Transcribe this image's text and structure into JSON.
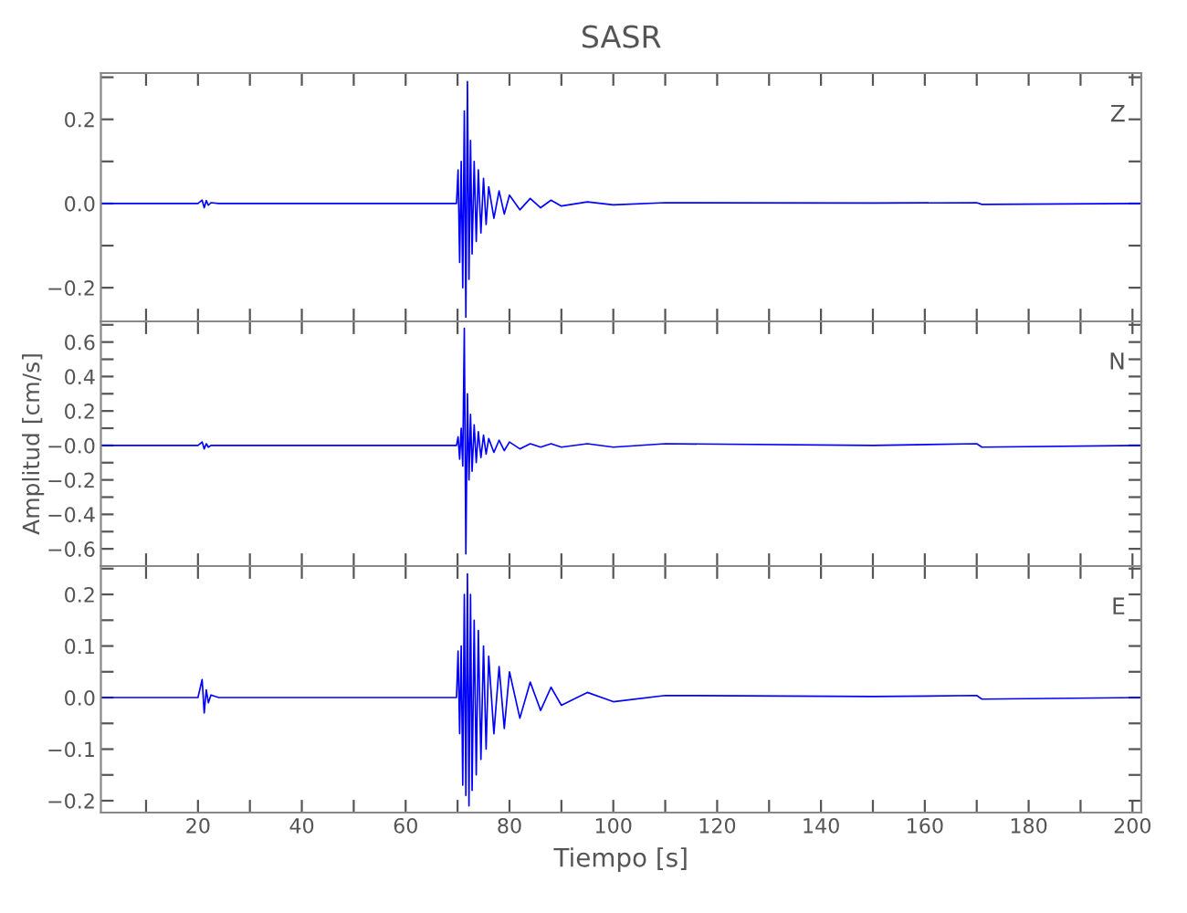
{
  "chart_data": [
    {
      "type": "line",
      "title": "SASR",
      "annotations": [
        "Z"
      ],
      "tick_labels": "y",
      "grid": false,
      "legend": false,
      "x": [
        1.3,
        20,
        20.8,
        21.2,
        21.6,
        22,
        22.5,
        24,
        40,
        60,
        69.8,
        70.1,
        70.4,
        70.7,
        71.0,
        71.3,
        71.6,
        71.9,
        72.2,
        72.5,
        72.8,
        73.2,
        73.6,
        74,
        74.5,
        75,
        75.5,
        76,
        77,
        78,
        79,
        80,
        82,
        84,
        86,
        88,
        90,
        95,
        100,
        110,
        150,
        170,
        171,
        201.7
      ],
      "series": [
        {
          "color": "#0000ff",
          "values": [
            0,
            0,
            0.008,
            -0.01,
            0.007,
            -0.004,
            0.002,
            0,
            0,
            0,
            0,
            0.08,
            -0.14,
            0.1,
            -0.2,
            0.22,
            -0.27,
            0.29,
            -0.18,
            0.15,
            -0.12,
            0.1,
            -0.09,
            0.08,
            -0.07,
            0.06,
            -0.05,
            0.04,
            -0.035,
            0.03,
            -0.025,
            0.02,
            -0.015,
            0.012,
            -0.01,
            0.008,
            -0.006,
            0.004,
            -0.003,
            0.002,
            0.001,
            0.002,
            -0.002,
            0
          ]
        }
      ],
      "xlim": [
        1.3,
        201.7
      ],
      "ylim": [
        -0.28,
        0.31
      ],
      "xticks": [
        {
          "value": 10,
          "label": null
        },
        20,
        {
          "value": 30,
          "label": null
        },
        40,
        {
          "value": 50,
          "label": null
        },
        60,
        {
          "value": 70,
          "label": null
        },
        80,
        {
          "value": 90,
          "label": null
        },
        100,
        {
          "value": 110,
          "label": null
        },
        120,
        {
          "value": 130,
          "label": null
        },
        140,
        {
          "value": 150,
          "label": null
        },
        160,
        {
          "value": 170,
          "label": null
        },
        180,
        {
          "value": 190,
          "label": null
        },
        200
      ],
      "yticks": [
        {
          "value": -0.2,
          "label": "−0.2"
        },
        {
          "value": -0.1,
          "label": null
        },
        {
          "value": 0,
          "label": "0.0"
        },
        {
          "value": 0.1,
          "label": null
        },
        0.2,
        {
          "value": 0.3,
          "label": null
        }
      ]
    },
    {
      "type": "line",
      "ylabel": "Amplitud [cm/s]",
      "annotations": [
        "N"
      ],
      "tick_labels": "y",
      "grid": false,
      "legend": false,
      "x": [
        1.3,
        20,
        20.8,
        21.2,
        21.6,
        22,
        22.5,
        24,
        40,
        60,
        69.8,
        70.1,
        70.4,
        70.7,
        71.0,
        71.3,
        71.6,
        71.9,
        72.2,
        72.5,
        72.8,
        73.2,
        73.6,
        74,
        74.5,
        75,
        75.5,
        76,
        77,
        78,
        79,
        80,
        82,
        84,
        86,
        88,
        90,
        95,
        100,
        110,
        150,
        170,
        171,
        201.7
      ],
      "series": [
        {
          "color": "#0000ff",
          "values": [
            0,
            0,
            0.02,
            -0.02,
            0.01,
            -0.01,
            0,
            0,
            0,
            0,
            0,
            0.05,
            -0.08,
            0.1,
            -0.12,
            0.68,
            -0.63,
            0.3,
            -0.2,
            0.18,
            -0.15,
            0.12,
            -0.1,
            0.08,
            -0.07,
            0.06,
            -0.05,
            0.04,
            -0.04,
            0.03,
            -0.03,
            0.02,
            -0.02,
            0.01,
            -0.01,
            0.01,
            -0.01,
            0.01,
            -0.01,
            0.01,
            0,
            0.01,
            -0.01,
            0
          ]
        }
      ],
      "xlim": [
        1.3,
        201.7
      ],
      "ylim": [
        -0.7,
        0.72
      ],
      "xticks": [
        {
          "value": 10,
          "label": null
        },
        20,
        {
          "value": 30,
          "label": null
        },
        40,
        {
          "value": 50,
          "label": null
        },
        60,
        {
          "value": 70,
          "label": null
        },
        80,
        {
          "value": 90,
          "label": null
        },
        100,
        {
          "value": 110,
          "label": null
        },
        120,
        {
          "value": 130,
          "label": null
        },
        140,
        {
          "value": 150,
          "label": null
        },
        160,
        {
          "value": 170,
          "label": null
        },
        180,
        {
          "value": 190,
          "label": null
        },
        200
      ],
      "yticks": [
        {
          "value": -0.6,
          "label": "−0.6"
        },
        {
          "value": -0.5,
          "label": null
        },
        {
          "value": -0.4,
          "label": "−0.4"
        },
        {
          "value": -0.3,
          "label": null
        },
        {
          "value": -0.2,
          "label": "−0.2"
        },
        {
          "value": -0.1,
          "label": null
        },
        {
          "value": 0,
          "label": "−0.0"
        },
        {
          "value": 0.1,
          "label": null
        },
        0.2,
        {
          "value": 0.3,
          "label": null
        },
        0.4,
        {
          "value": 0.5,
          "label": null
        },
        0.6,
        {
          "value": 0.7,
          "label": null
        }
      ]
    },
    {
      "type": "line",
      "xlabel": "Tiempo [s]",
      "annotations": [
        "E"
      ],
      "grid": false,
      "legend": false,
      "x": [
        1.3,
        20,
        20.8,
        21.2,
        21.6,
        22,
        22.5,
        24,
        40,
        60,
        69.8,
        70.1,
        70.4,
        70.7,
        71.0,
        71.3,
        71.6,
        71.9,
        72.2,
        72.5,
        72.8,
        73.2,
        73.6,
        74,
        74.5,
        75,
        75.5,
        76,
        77,
        78,
        79,
        80,
        82,
        84,
        86,
        88,
        90,
        95,
        100,
        110,
        150,
        170,
        171,
        201.7
      ],
      "series": [
        {
          "color": "#0000ff",
          "values": [
            0,
            0,
            0.035,
            -0.03,
            0.015,
            -0.01,
            0.005,
            0,
            0,
            0,
            0,
            0.09,
            -0.07,
            0.1,
            -0.17,
            0.2,
            -0.19,
            0.24,
            -0.21,
            0.2,
            -0.18,
            0.15,
            -0.15,
            0.13,
            -0.12,
            0.1,
            -0.1,
            0.08,
            -0.07,
            0.06,
            -0.06,
            0.05,
            -0.04,
            0.03,
            -0.025,
            0.02,
            -0.015,
            0.01,
            -0.008,
            0.004,
            0.002,
            0.004,
            -0.003,
            0
          ]
        }
      ],
      "xlim": [
        1.3,
        201.7
      ],
      "ylim": [
        -0.223,
        0.255
      ],
      "xticks": [
        {
          "value": 10,
          "label": null
        },
        20,
        {
          "value": 30,
          "label": null
        },
        40,
        {
          "value": 50,
          "label": null
        },
        60,
        {
          "value": 70,
          "label": null
        },
        80,
        {
          "value": 90,
          "label": null
        },
        100,
        {
          "value": 110,
          "label": null
        },
        120,
        {
          "value": 130,
          "label": null
        },
        140,
        {
          "value": 150,
          "label": null
        },
        160,
        {
          "value": 170,
          "label": null
        },
        180,
        {
          "value": 190,
          "label": null
        },
        200
      ],
      "yticks": [
        {
          "value": -0.2,
          "label": "−0.2"
        },
        {
          "value": -0.15,
          "label": null
        },
        {
          "value": -0.1,
          "label": "−0.1"
        },
        {
          "value": -0.05,
          "label": null
        },
        {
          "value": 0,
          "label": "0.0"
        },
        {
          "value": 0.05,
          "label": null
        },
        0.1,
        {
          "value": 0.15,
          "label": null
        },
        0.2,
        {
          "value": 0.25,
          "label": null
        }
      ]
    }
  ]
}
